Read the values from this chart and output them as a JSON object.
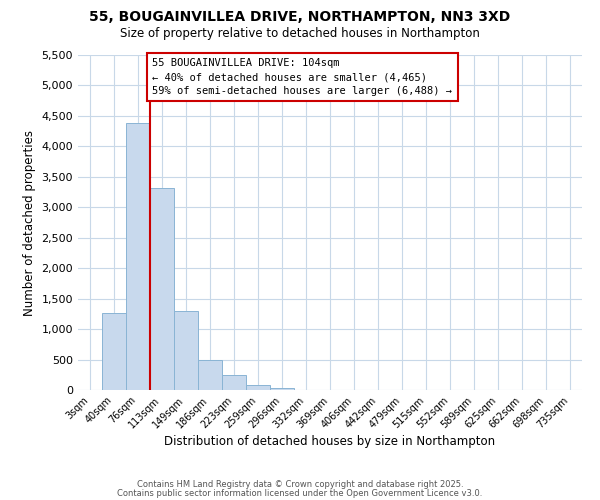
{
  "title": "55, BOUGAINVILLEA DRIVE, NORTHAMPTON, NN3 3XD",
  "subtitle": "Size of property relative to detached houses in Northampton",
  "xlabel": "Distribution of detached houses by size in Northampton",
  "ylabel": "Number of detached properties",
  "bar_labels": [
    "3sqm",
    "40sqm",
    "76sqm",
    "113sqm",
    "149sqm",
    "186sqm",
    "223sqm",
    "259sqm",
    "296sqm",
    "332sqm",
    "369sqm",
    "406sqm",
    "442sqm",
    "479sqm",
    "515sqm",
    "552sqm",
    "589sqm",
    "625sqm",
    "662sqm",
    "698sqm",
    "735sqm"
  ],
  "bar_values": [
    0,
    1270,
    4380,
    3320,
    1290,
    500,
    240,
    75,
    30,
    5,
    2,
    0,
    0,
    0,
    0,
    0,
    0,
    0,
    0,
    0,
    0
  ],
  "bar_color": "#c8d9ed",
  "bar_edge_color": "#8ab4d4",
  "vline_x": 2.5,
  "vline_color": "#cc0000",
  "ylim": [
    0,
    5500
  ],
  "yticks": [
    0,
    500,
    1000,
    1500,
    2000,
    2500,
    3000,
    3500,
    4000,
    4500,
    5000,
    5500
  ],
  "annotation_title": "55 BOUGAINVILLEA DRIVE: 104sqm",
  "annotation_line1": "← 40% of detached houses are smaller (4,465)",
  "annotation_line2": "59% of semi-detached houses are larger (6,488) →",
  "annotation_box_color": "#ffffff",
  "annotation_box_edge": "#cc0000",
  "footer1": "Contains HM Land Registry data © Crown copyright and database right 2025.",
  "footer2": "Contains public sector information licensed under the Open Government Licence v3.0.",
  "background_color": "#ffffff",
  "grid_color": "#c8d8e8"
}
